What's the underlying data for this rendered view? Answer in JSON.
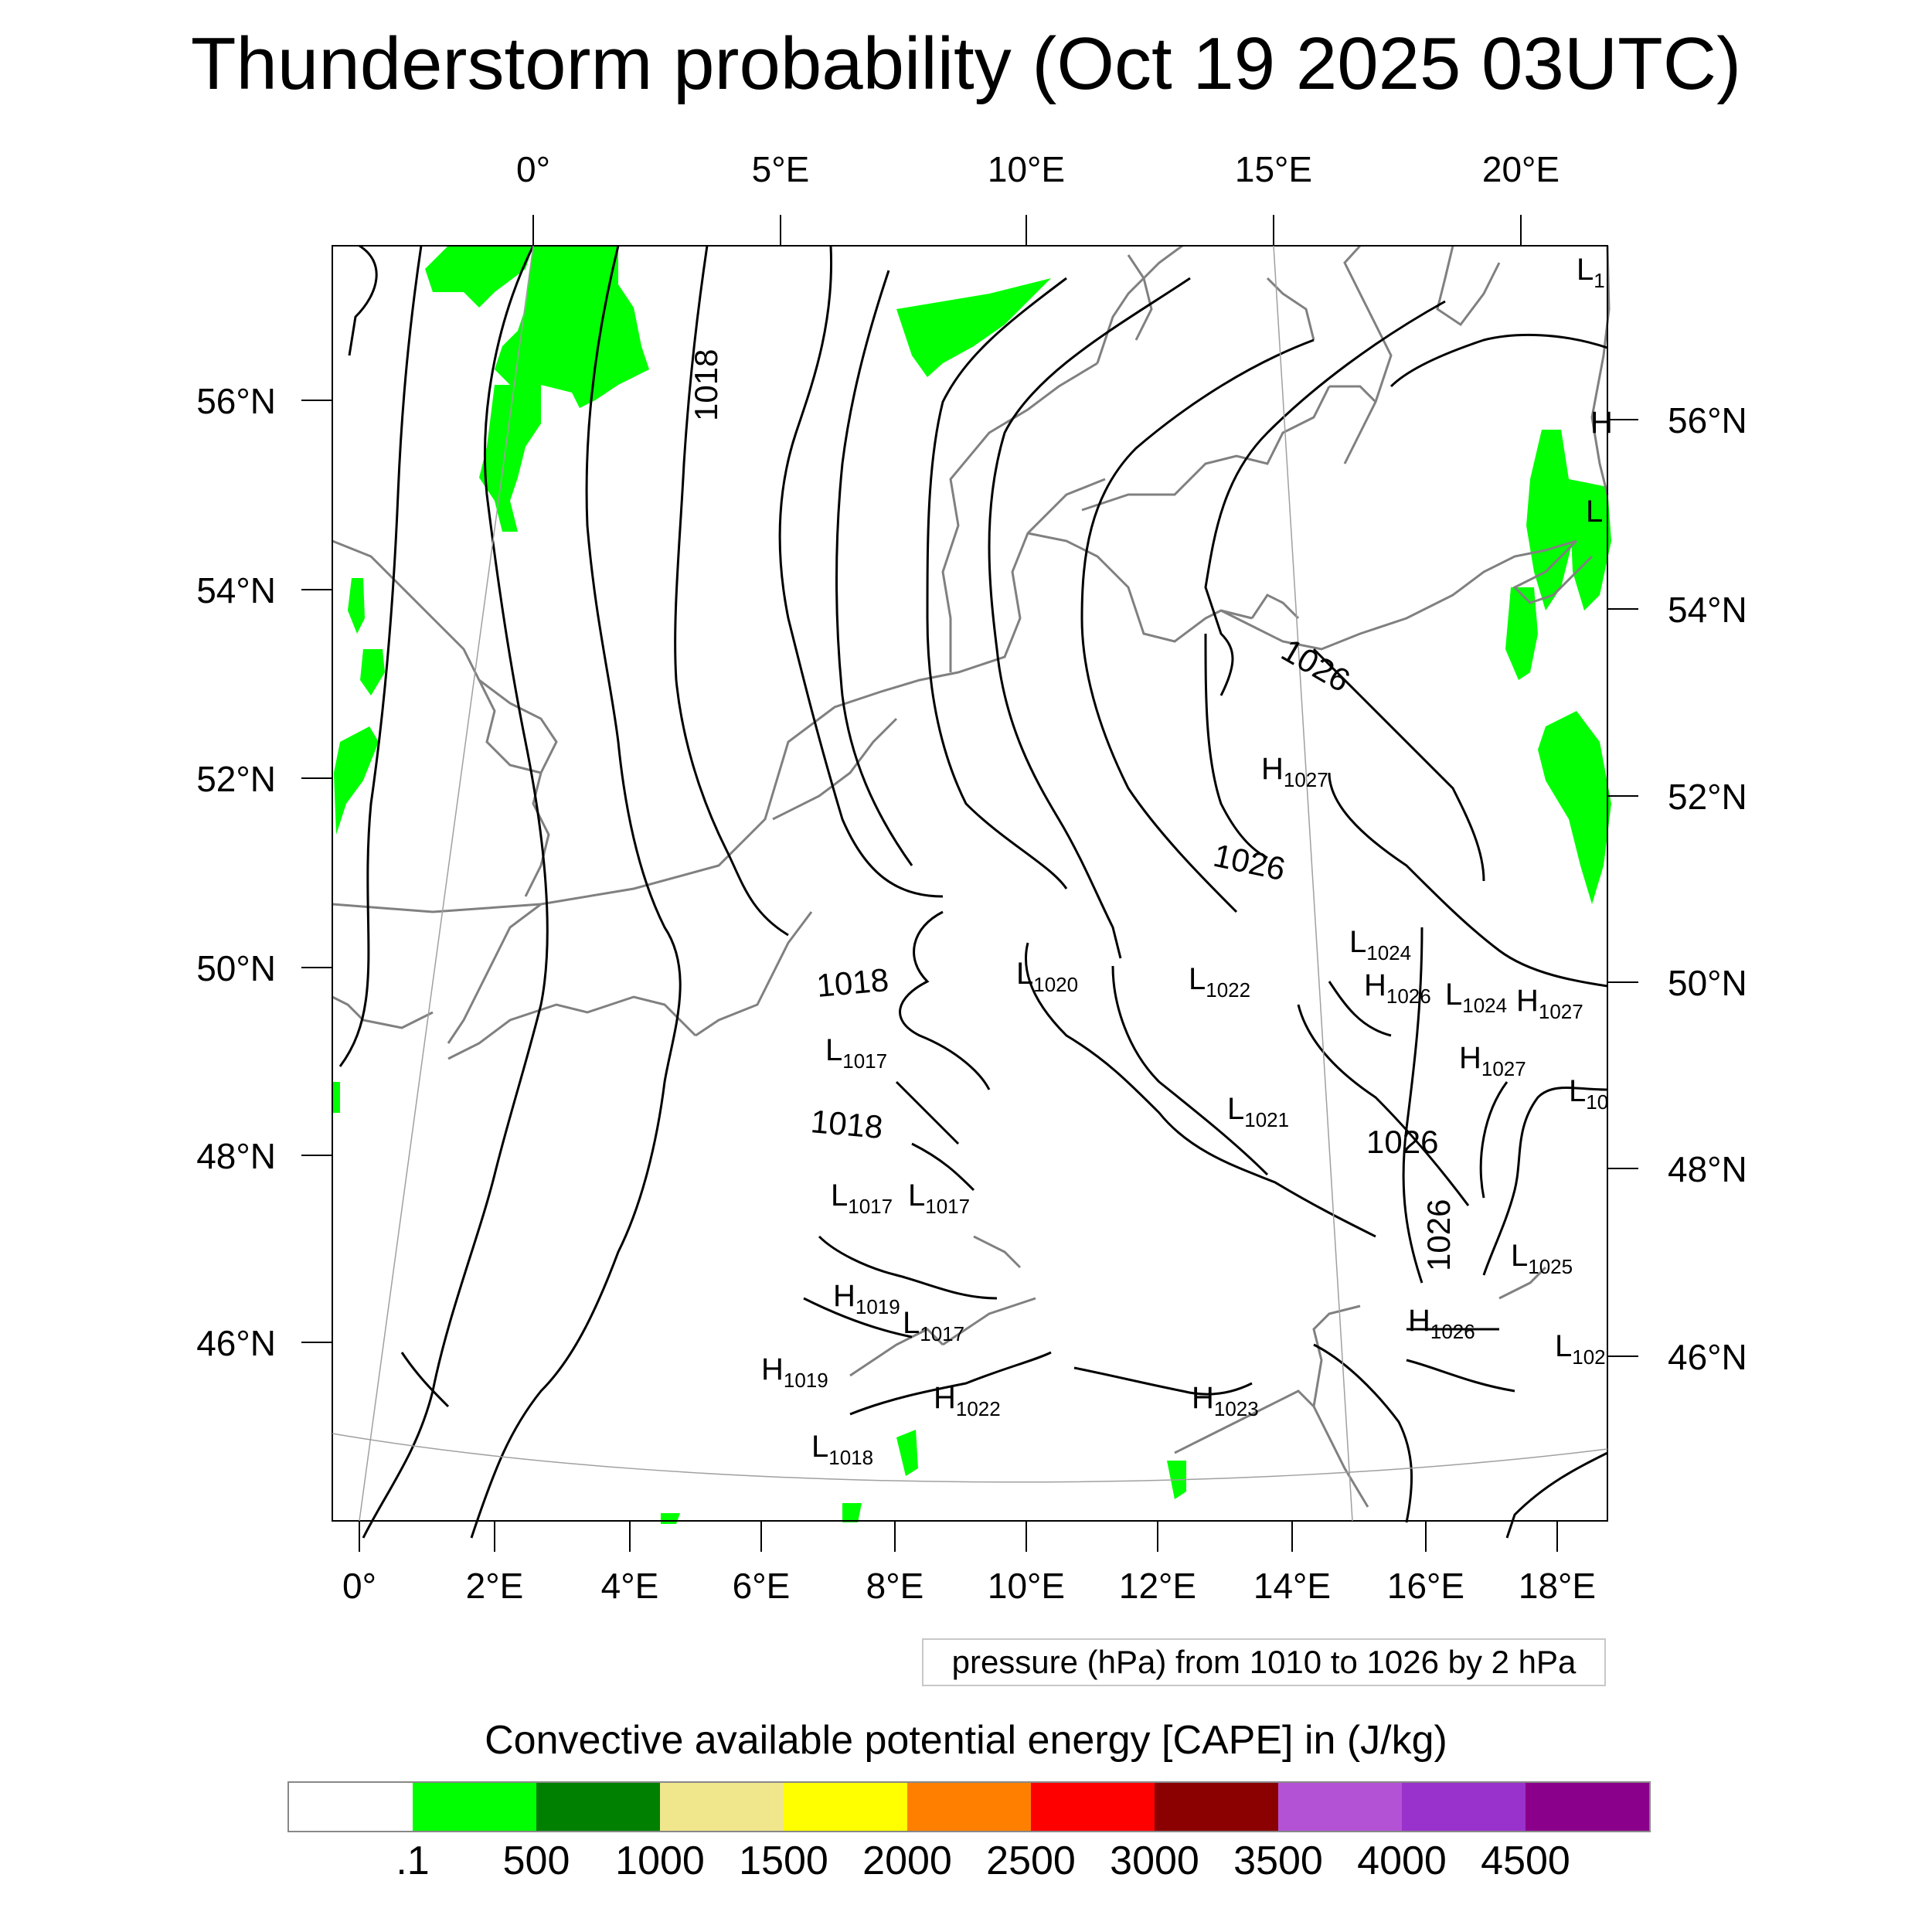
{
  "title": "Thunderstorm probability (Oct 19 2025 03UTC)",
  "top_lon_labels": [
    "0°",
    "5°E",
    "10°E",
    "15°E",
    "20°E"
  ],
  "bottom_lon_labels": [
    "0°",
    "2°E",
    "4°E",
    "6°E",
    "8°E",
    "10°E",
    "12°E",
    "14°E",
    "16°E",
    "18°E"
  ],
  "left_lat_labels": [
    "56°N",
    "54°N",
    "52°N",
    "50°N",
    "48°N",
    "46°N"
  ],
  "right_lat_labels": [
    "56°N",
    "54°N",
    "52°N",
    "50°N",
    "48°N",
    "46°N"
  ],
  "isobar_labels": [
    "1018",
    "1018",
    "1018",
    "1026",
    "1026",
    "1026",
    "1026"
  ],
  "pressure_centers": [
    {
      "t": "L",
      "v": "1"
    },
    {
      "t": "H",
      "v": ""
    },
    {
      "t": "L",
      "v": ""
    },
    {
      "t": "H",
      "v": "1027"
    },
    {
      "t": "L",
      "v": "1024"
    },
    {
      "t": "H",
      "v": "1026"
    },
    {
      "t": "L",
      "v": "1024"
    },
    {
      "t": "H",
      "v": "1027"
    },
    {
      "t": "L",
      "v": "1020"
    },
    {
      "t": "L",
      "v": "1022"
    },
    {
      "t": "L",
      "v": "1017"
    },
    {
      "t": "H",
      "v": "1027"
    },
    {
      "t": "L",
      "v": "10"
    },
    {
      "t": "L",
      "v": "1021"
    },
    {
      "t": "L",
      "v": "1017"
    },
    {
      "t": "L",
      "v": "1017"
    },
    {
      "t": "L",
      "v": "1025"
    },
    {
      "t": "H",
      "v": "1019"
    },
    {
      "t": "L",
      "v": "1017"
    },
    {
      "t": "H",
      "v": "1026"
    },
    {
      "t": "L",
      "v": "102"
    },
    {
      "t": "H",
      "v": "1019"
    },
    {
      "t": "H",
      "v": "1022"
    },
    {
      "t": "H",
      "v": "1023"
    },
    {
      "t": "L",
      "v": "1018"
    }
  ],
  "pressure_note": "pressure (hPa) from 1010 to 1026 by 2 hPa",
  "colorbar": {
    "title": "Convective available potential energy [CAPE] in (J/kg)",
    "colors": [
      "#ffffff",
      "#00ff00",
      "#008000",
      "#f0e68c",
      "#ffff00",
      "#ff8000",
      "#ff0000",
      "#8b0000",
      "#b452d6",
      "#9932cc",
      "#8b008b"
    ],
    "ticks": [
      ".1",
      "500",
      "1000",
      "1500",
      "2000",
      "2500",
      "3000",
      "3500",
      "4000",
      "4500"
    ]
  },
  "colors": {
    "isobar": "#000000",
    "coast": "#808080",
    "cape_low": "#00ff00",
    "grid": "#a0a0a0"
  }
}
